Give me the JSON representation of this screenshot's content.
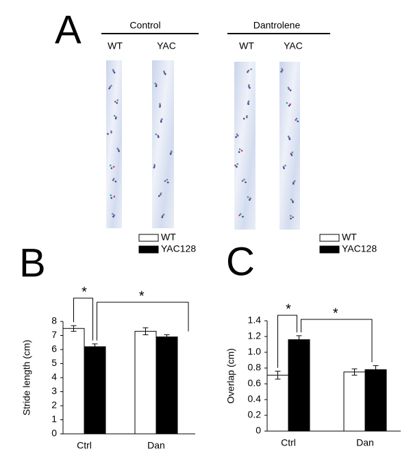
{
  "panel_a": {
    "label": "A",
    "groups": [
      {
        "title": "Control",
        "lanes": [
          "WT",
          "YAC"
        ]
      },
      {
        "title": "Dantrolene",
        "lanes": [
          "WT",
          "YAC"
        ]
      }
    ]
  },
  "chart_data": [
    {
      "type": "bar",
      "panel": "B",
      "ylabel": "Stride length (cm)",
      "categories": [
        "Ctrl",
        "Dan"
      ],
      "series": [
        {
          "name": "WT",
          "color": "#ffffff",
          "values": [
            7.5,
            7.3
          ],
          "errors": [
            0.2,
            0.25
          ]
        },
        {
          "name": "YAC128",
          "color": "#000000",
          "values": [
            6.2,
            6.9
          ],
          "errors": [
            0.2,
            0.15
          ]
        }
      ],
      "ylim": [
        0,
        8
      ],
      "yticks": [
        0,
        1,
        2,
        3,
        4,
        5,
        6,
        7,
        8
      ],
      "annotations": [
        "*",
        "*"
      ]
    },
    {
      "type": "bar",
      "panel": "C",
      "ylabel": "Overlap (cm)",
      "categories": [
        "Ctrl",
        "Dan"
      ],
      "series": [
        {
          "name": "WT",
          "color": "#ffffff",
          "values": [
            0.71,
            0.75
          ],
          "errors": [
            0.05,
            0.04
          ]
        },
        {
          "name": "YAC128",
          "color": "#000000",
          "values": [
            1.16,
            0.78
          ],
          "errors": [
            0.05,
            0.05
          ]
        }
      ],
      "ylim": [
        0,
        1.4
      ],
      "yticks": [
        0,
        0.2,
        0.4,
        0.6,
        0.8,
        {
          "value": 1,
          "label": "1.0"
        },
        1.2,
        1.4
      ],
      "annotations": [
        "*",
        "*"
      ]
    }
  ]
}
